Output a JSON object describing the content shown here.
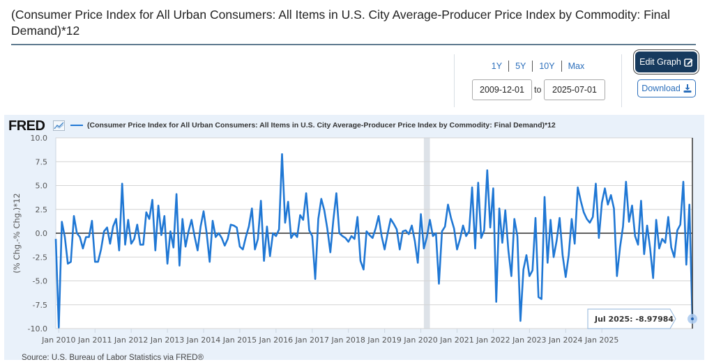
{
  "header": {
    "title": "(Consumer Price Index for All Urban Consumers: All Items in U.S. City Average-Producer Price Index by Commodity: Final Demand)*12"
  },
  "range": {
    "links": [
      "1Y",
      "5Y",
      "10Y",
      "Max"
    ],
    "from": "2009-12-01",
    "to_label": "to",
    "to": "2025-07-01"
  },
  "buttons": {
    "edit_graph": "Edit Graph",
    "download": "Download"
  },
  "icons": {
    "edit": "edit-square-icon",
    "download": "download-tray-icon",
    "fred_chart": "line-chart-icon"
  },
  "colors": {
    "series": "#1f77d4",
    "edit_button_bg": "#173a5e",
    "link": "#2a6ebb",
    "panel_bg": "#e9f1fa"
  },
  "fred": {
    "logo": "FRED",
    "source": "Source: U.S. Bureau of Labor Statistics via FRED®"
  },
  "tooltip": {
    "label": "Jul 2025:",
    "value": "-8.97984"
  },
  "chart_data": {
    "type": "line",
    "title": "",
    "legend": [
      "(Consumer Price Index for All Urban Consumers: All Items in U.S. City Average-Producer Price Index by Commodity: Final Demand)*12"
    ],
    "legend_position": "top-left",
    "ylabel": "(% Chg.-% Chg.)*12",
    "xlabel": "",
    "ylim": [
      -10.0,
      10.0
    ],
    "yticks": [
      "10.0",
      "7.5",
      "5.0",
      "2.5",
      "0.0",
      "-2.5",
      "-5.0",
      "-7.5",
      "-10.0"
    ],
    "ytick_values": [
      10.0,
      7.5,
      5.0,
      2.5,
      0.0,
      -2.5,
      -5.0,
      -7.5,
      -10.0
    ],
    "xticks": [
      "Jan 2010",
      "Jan 2011",
      "Jan 2012",
      "Jan 2013",
      "Jan 2014",
      "Jan 2015",
      "Jan 2016",
      "Jan 2017",
      "Jan 2018",
      "Jan 2019",
      "Jan 2020",
      "Jan 2021",
      "Jan 2022",
      "Jan 2023",
      "Jan 2024",
      "Jan 2025"
    ],
    "x_start": "2009-12",
    "x_end": "2025-07",
    "grid": true,
    "recession_shading": [
      {
        "start": "2020-02",
        "end": "2020-04"
      }
    ],
    "series": [
      {
        "name": "(CPI-PPI Final Demand)*12",
        "values": [
          -0.6,
          -9.9,
          1.2,
          -0.4,
          -3.2,
          -3.0,
          1.8,
          0.0,
          -0.4,
          -1.6,
          -0.4,
          -0.4,
          1.3,
          -3.0,
          -3.0,
          -1.7,
          0.2,
          0.6,
          -1.1,
          0.7,
          1.5,
          -1.8,
          5.2,
          -1.2,
          1.4,
          -1.1,
          -0.6,
          0.9,
          -1.2,
          -1.2,
          2.2,
          1.5,
          3.5,
          -1.8,
          2.9,
          -0.2,
          1.8,
          -3.2,
          0.2,
          -1.5,
          4.1,
          -3.4,
          1.5,
          -1.4,
          0.2,
          1.4,
          -0.3,
          -1.8,
          0.7,
          2.3,
          0.0,
          -3.0,
          1.3,
          -0.4,
          0.0,
          -0.5,
          -1.3,
          -0.6,
          0.9,
          0.8,
          0.6,
          -1.4,
          -1.7,
          -0.4,
          0.7,
          2.6,
          -1.7,
          -0.6,
          3.4,
          -2.9,
          0.7,
          -2.4,
          0.0,
          -0.3,
          0.4,
          8.3,
          1.1,
          3.3,
          -0.5,
          0.0,
          -0.4,
          1.9,
          1.4,
          4.2,
          0.3,
          -0.3,
          -4.8,
          1.5,
          3.6,
          2.4,
          0.5,
          -2.0,
          1.4,
          4.2,
          0.0,
          -0.3,
          -0.5,
          -0.9,
          -0.3,
          -0.6,
          1.7,
          -2.9,
          -3.8,
          0.2,
          -0.2,
          -0.5,
          0.5,
          1.8,
          -0.3,
          -1.7,
          0.0,
          1.5,
          1.0,
          0.4,
          -1.7,
          0.2,
          0.3,
          -0.1,
          0.8,
          -0.8,
          -3.1,
          2.0,
          -1.6,
          -0.4,
          1.4,
          -0.3,
          0.0,
          -5.3,
          0.2,
          0.7,
          3.0,
          1.6,
          0.5,
          -1.7,
          -0.6,
          0.8,
          -0.3,
          0.2,
          4.8,
          -1.6,
          5.3,
          -0.5,
          0.3,
          6.6,
          0.6,
          4.7,
          -7.2,
          2.6,
          -1.0,
          2.4,
          -1.8,
          -4.5,
          1.5,
          -0.3,
          -9.2,
          -3.8,
          -2.3,
          -4.5,
          -3.9,
          1.6,
          -6.7,
          -6.9,
          3.8,
          -3.1,
          1.4,
          -2.5,
          -0.8,
          1.6,
          -2.3,
          -4.6,
          -2.3,
          1.5,
          -1.1,
          4.8,
          3.4,
          2.2,
          1.5,
          1.1,
          1.7,
          5.2,
          -0.5,
          3.2,
          4.7,
          3.0,
          4.0,
          2.6,
          -4.5,
          -1.5,
          0.7,
          5.4,
          1.2,
          2.9,
          -0.3,
          -1.2,
          3.4,
          -2.2,
          0.8,
          -1.6,
          -4.7,
          1.4,
          -1.6,
          -0.6,
          -1.0,
          1.7,
          -1.5,
          -2.5,
          0.3,
          0.9,
          5.4,
          -3.3,
          3.0,
          -8.97984
        ]
      }
    ]
  }
}
